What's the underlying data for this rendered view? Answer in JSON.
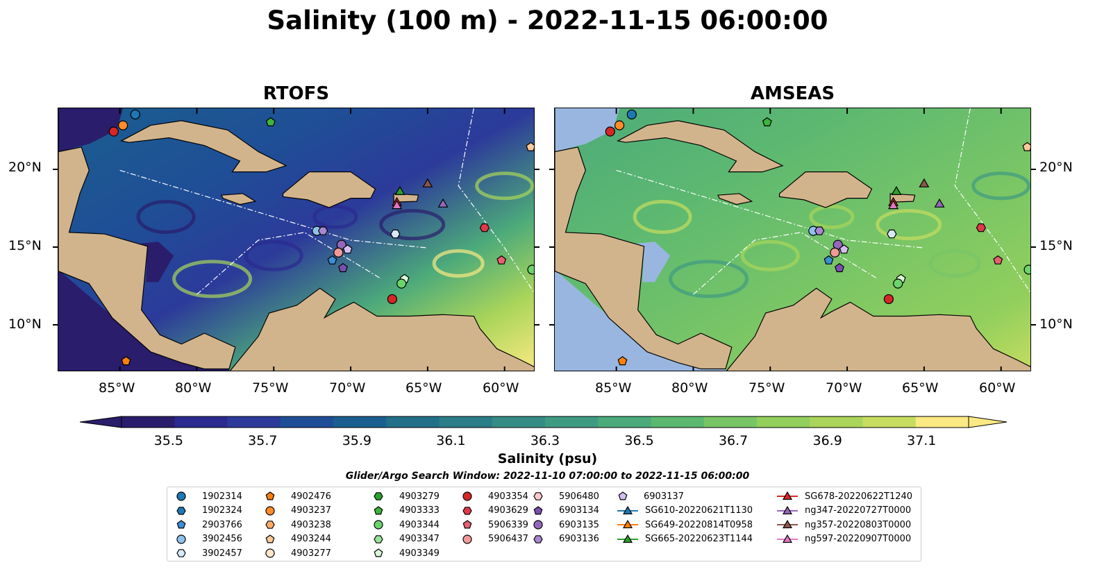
{
  "title": "Salinity (100 m) - 2022-11-15 06:00:00",
  "panels": [
    {
      "title": "RTOFS",
      "id": "rtofs"
    },
    {
      "title": "AMSEAS",
      "id": "amseas"
    }
  ],
  "axes": {
    "lon_ticks": [
      "85°W",
      "80°W",
      "75°W",
      "70°W",
      "65°W",
      "60°W"
    ],
    "lat_ticks": [
      "20°N",
      "15°N",
      "10°N"
    ],
    "lon_range": [
      -89,
      -58
    ],
    "lat_range": [
      7,
      24
    ]
  },
  "colorbar": {
    "label": "Salinity (psu)",
    "ticks": [
      "35.5",
      "35.7",
      "35.9",
      "36.1",
      "36.3",
      "36.5",
      "36.7",
      "36.9",
      "37.1"
    ],
    "range": [
      35.4,
      37.2
    ],
    "colors": [
      "#2a1d6b",
      "#2b2a8f",
      "#2c3a9a",
      "#1f4e96",
      "#1a5f8f",
      "#226f8a",
      "#2b7d88",
      "#358c86",
      "#3f9a82",
      "#4caa7a",
      "#5cb871",
      "#78c566",
      "#92cf5d",
      "#aad55a",
      "#c6dd60",
      "#fbe983"
    ],
    "extend": "both"
  },
  "search_window": "Glider/Argo Search Window: 2022-11-10 07:00:00 to 2022-11-15 06:00:00",
  "land_color": "#d2b48c",
  "shallow_color": "#98b6e0",
  "legend": [
    [
      {
        "label": "1902314",
        "marker": "circle",
        "color": "#1f77b4"
      },
      {
        "label": "1902324",
        "marker": "hexagon",
        "color": "#1f77b4"
      },
      {
        "label": "2903766",
        "marker": "pentagon",
        "color": "#3b8fd6"
      },
      {
        "label": "3902456",
        "marker": "circle",
        "color": "#8fc1ea"
      },
      {
        "label": "3902457",
        "marker": "hexagon",
        "color": "#d6e9f8"
      }
    ],
    [
      {
        "label": "4902476",
        "marker": "pentagon",
        "color": "#ff7f0e"
      },
      {
        "label": "4903237",
        "marker": "circle",
        "color": "#ff8c2a"
      },
      {
        "label": "4903238",
        "marker": "hexagon",
        "color": "#ffad66"
      },
      {
        "label": "4903244",
        "marker": "pentagon",
        "color": "#ffc999"
      },
      {
        "label": "4903277",
        "marker": "circle",
        "color": "#ffe5cc"
      }
    ],
    [
      {
        "label": "4903279",
        "marker": "hexagon",
        "color": "#2ca02c"
      },
      {
        "label": "4903333",
        "marker": "pentagon",
        "color": "#3cb43c"
      },
      {
        "label": "4903344",
        "marker": "circle",
        "color": "#6ad46a"
      },
      {
        "label": "4903347",
        "marker": "hexagon",
        "color": "#9be39b"
      },
      {
        "label": "4903349",
        "marker": "pentagon",
        "color": "#d9f7d9"
      }
    ],
    [
      {
        "label": "4903354",
        "marker": "circle",
        "color": "#d62728"
      },
      {
        "label": "4903629",
        "marker": "hexagon",
        "color": "#e0394a"
      },
      {
        "label": "5906339",
        "marker": "pentagon",
        "color": "#e86070"
      },
      {
        "label": "5906437",
        "marker": "circle",
        "color": "#f29898"
      }
    ],
    [
      {
        "label": "5906480",
        "marker": "hexagon",
        "color": "#f9cccc"
      },
      {
        "label": "6903134",
        "marker": "pentagon",
        "color": "#7b4fb0"
      },
      {
        "label": "6903135",
        "marker": "circle",
        "color": "#9467bd"
      },
      {
        "label": "6903136",
        "marker": "hexagon",
        "color": "#a888d0"
      }
    ],
    [
      {
        "label": "6903137",
        "marker": "pentagon",
        "color": "#d2bff0"
      },
      {
        "label": "SG610-20220621T1130",
        "marker": "triangle",
        "color": "#1f77b4"
      },
      {
        "label": "SG649-20220814T0958",
        "marker": "triangle",
        "color": "#ff7f0e"
      },
      {
        "label": "SG665-20220623T1144",
        "marker": "triangle",
        "color": "#2ca02c"
      }
    ],
    [
      {
        "label": "SG678-20220622T1240",
        "marker": "triangle",
        "color": "#d62728"
      },
      {
        "label": "ng347-20220727T0000",
        "marker": "triangle",
        "color": "#9467bd"
      },
      {
        "label": "ng357-20220803T0000",
        "marker": "triangle",
        "color": "#8c564b"
      },
      {
        "label": "ng597-20220907T0000",
        "marker": "triangle",
        "color": "#e377c2"
      }
    ]
  ],
  "map_markers": [
    {
      "lon": -84.0,
      "lat": 23.6,
      "marker": "circle",
      "color": "#1f77b4"
    },
    {
      "lon": -85.4,
      "lat": 22.5,
      "marker": "circle",
      "color": "#d62728"
    },
    {
      "lon": -84.8,
      "lat": 22.9,
      "marker": "circle",
      "color": "#ff8c2a"
    },
    {
      "lon": -75.2,
      "lat": 23.1,
      "marker": "pentagon",
      "color": "#3cb43c"
    },
    {
      "lon": -58.3,
      "lat": 21.5,
      "marker": "pentagon",
      "color": "#ffc999"
    },
    {
      "lon": -66.8,
      "lat": 18.6,
      "marker": "triangle",
      "color": "#2ca02c"
    },
    {
      "lon": -65.0,
      "lat": 19.1,
      "marker": "triangle",
      "color": "#8c564b"
    },
    {
      "lon": -67.0,
      "lat": 17.9,
      "marker": "triangle",
      "color": "#d62728"
    },
    {
      "lon": -67.0,
      "lat": 17.7,
      "marker": "triangle",
      "color": "#e377c2"
    },
    {
      "lon": -64.0,
      "lat": 17.8,
      "marker": "triangle",
      "color": "#9467bd"
    },
    {
      "lon": -72.2,
      "lat": 16.1,
      "marker": "circle",
      "color": "#8fc1ea"
    },
    {
      "lon": -71.8,
      "lat": 16.1,
      "marker": "hexagon",
      "color": "#a888d0"
    },
    {
      "lon": -67.1,
      "lat": 15.9,
      "marker": "hexagon",
      "color": "#d6e9f8"
    },
    {
      "lon": -70.6,
      "lat": 15.2,
      "marker": "circle",
      "color": "#9467bd"
    },
    {
      "lon": -70.2,
      "lat": 14.9,
      "marker": "pentagon",
      "color": "#d2bff0"
    },
    {
      "lon": -70.8,
      "lat": 14.7,
      "marker": "circle",
      "color": "#f29898"
    },
    {
      "lon": -71.2,
      "lat": 14.2,
      "marker": "pentagon",
      "color": "#3b8fd6"
    },
    {
      "lon": -70.5,
      "lat": 13.7,
      "marker": "pentagon",
      "color": "#7b4fb0"
    },
    {
      "lon": -60.2,
      "lat": 14.2,
      "marker": "pentagon",
      "color": "#e86070"
    },
    {
      "lon": -58.2,
      "lat": 13.6,
      "marker": "circle",
      "color": "#6ad46a"
    },
    {
      "lon": -66.5,
      "lat": 13.0,
      "marker": "pentagon",
      "color": "#d9f7d9"
    },
    {
      "lon": -66.7,
      "lat": 12.7,
      "marker": "circle",
      "color": "#6ad46a"
    },
    {
      "lon": -67.3,
      "lat": 11.7,
      "marker": "circle",
      "color": "#d62728"
    },
    {
      "lon": -84.6,
      "lat": 7.7,
      "marker": "pentagon",
      "color": "#ff7f0e"
    },
    {
      "lon": -61.3,
      "lat": 16.3,
      "marker": "hexagon",
      "color": "#e0394a"
    }
  ]
}
